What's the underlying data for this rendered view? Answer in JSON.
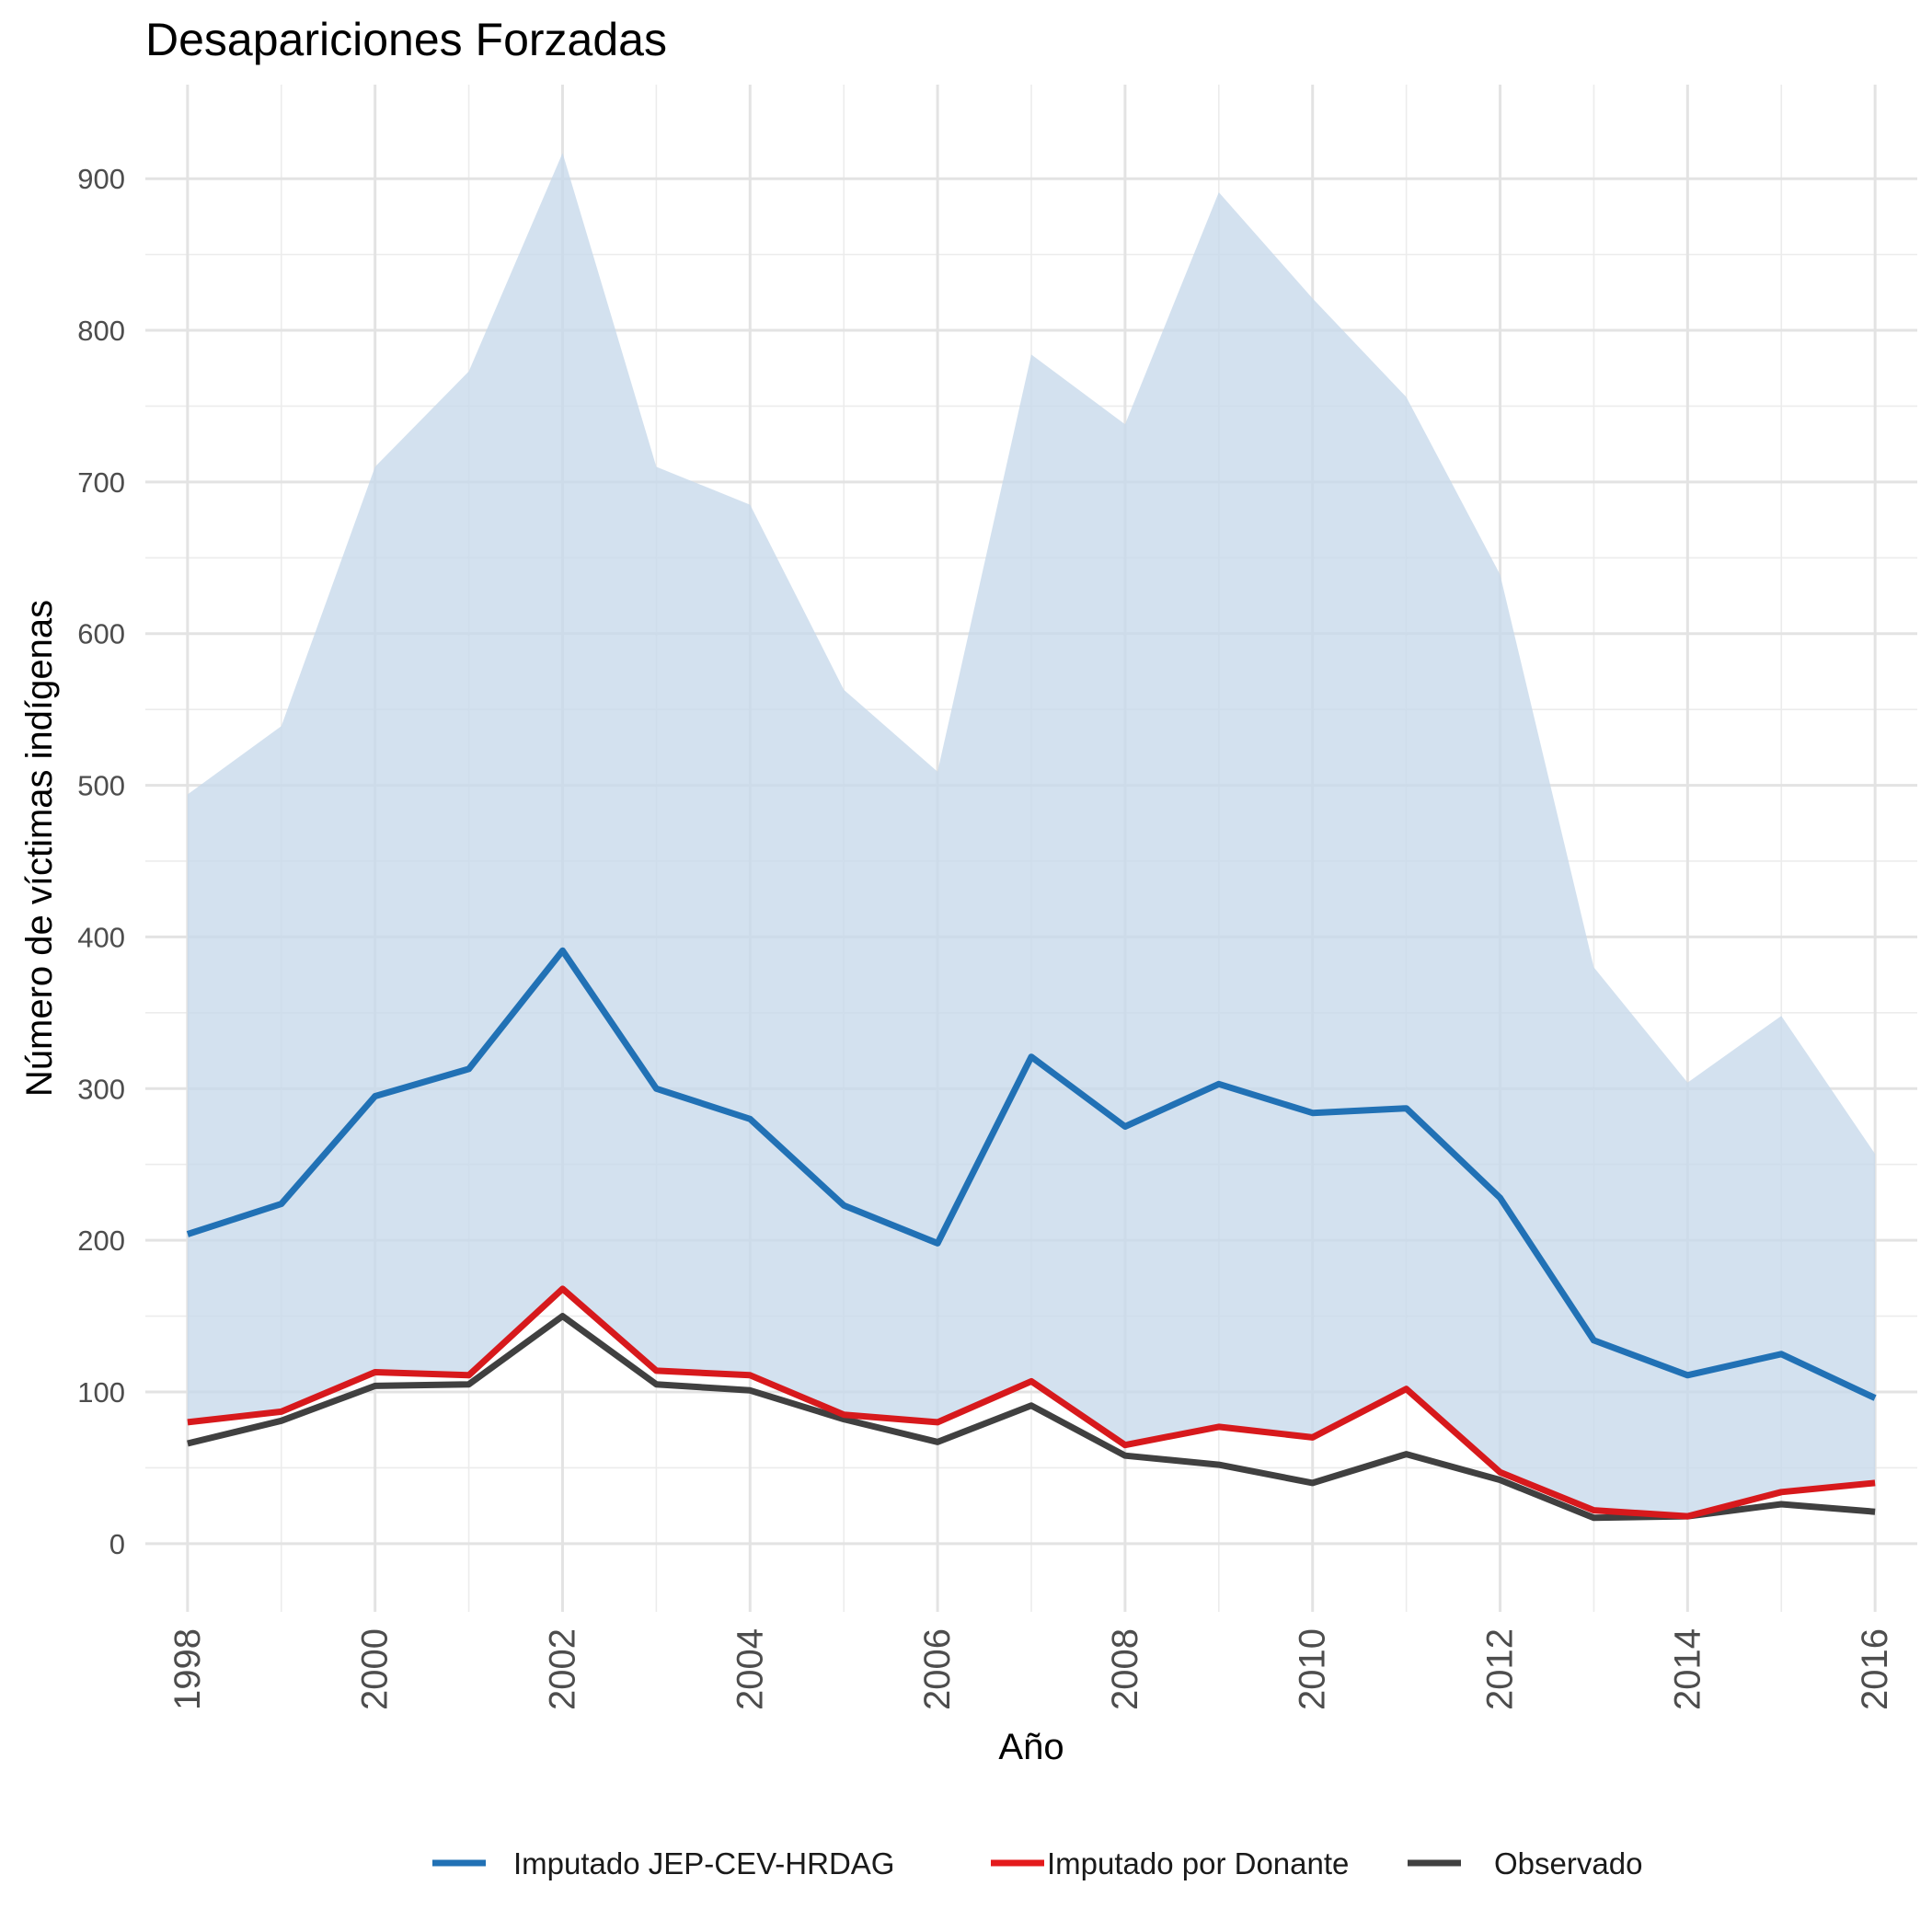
{
  "chart_data": {
    "type": "line",
    "title": "Desapariciones Forzadas",
    "xlabel": "Año",
    "ylabel": "Número de víctimas indígenas",
    "x": [
      1998,
      1999,
      2000,
      2001,
      2002,
      2003,
      2004,
      2005,
      2006,
      2007,
      2008,
      2009,
      2010,
      2011,
      2012,
      2013,
      2014,
      2015,
      2016
    ],
    "x_ticks": [
      "1998",
      "2000",
      "2002",
      "2004",
      "2006",
      "2008",
      "2010",
      "2012",
      "2014",
      "2016"
    ],
    "y_ticks": [
      "0",
      "100",
      "200",
      "300",
      "400",
      "500",
      "600",
      "700",
      "800",
      "900"
    ],
    "xlim": [
      1997.55,
      2016.45
    ],
    "ylim": [
      -45,
      962
    ],
    "grid": true,
    "legend_position": "bottom",
    "band": {
      "lower": [
        80,
        87,
        113,
        111,
        168,
        114,
        111,
        85,
        80,
        107,
        65,
        77,
        70,
        102,
        47,
        22,
        18,
        34,
        40
      ],
      "upper": [
        494,
        539,
        710,
        773,
        917,
        710,
        685,
        563,
        509,
        784,
        738,
        891,
        821,
        756,
        639,
        380,
        304,
        348,
        257
      ],
      "color": "#c6d9ea"
    },
    "series": [
      {
        "name": "Imputado JEP-CEV-HRDAG",
        "color": "#2171b5",
        "values": [
          204,
          224,
          295,
          313,
          391,
          300,
          280,
          223,
          198,
          321,
          275,
          303,
          284,
          287,
          228,
          134,
          111,
          125,
          96
        ]
      },
      {
        "name": "Imputado por Donante",
        "color": "#d7191c",
        "values": [
          80,
          87,
          113,
          111,
          168,
          114,
          111,
          85,
          80,
          107,
          65,
          77,
          70,
          102,
          47,
          22,
          18,
          34,
          40
        ]
      },
      {
        "name": "Observado",
        "color": "#404040",
        "values": [
          66,
          81,
          104,
          105,
          150,
          105,
          101,
          82,
          67,
          91,
          58,
          52,
          40,
          59,
          42,
          17,
          18,
          26,
          21
        ]
      }
    ],
    "legend": [
      {
        "label": "Imputado JEP-CEV-HRDAG",
        "color": "#2171b5"
      },
      {
        "label": "Imputado por Donante",
        "color": "#e41a1c"
      },
      {
        "label": "Observado",
        "color": "#404040"
      }
    ]
  }
}
